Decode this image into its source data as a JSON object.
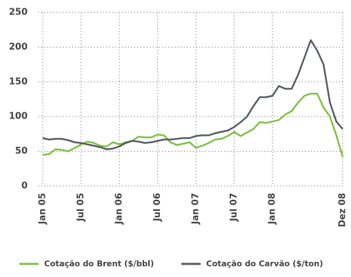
{
  "chart_data": {
    "type": "line",
    "categories": [
      "Jan 05",
      null,
      null,
      null,
      null,
      null,
      "Jul 05",
      null,
      null,
      null,
      null,
      null,
      "Jan 06",
      null,
      null,
      null,
      null,
      null,
      "Jul 06",
      null,
      null,
      null,
      null,
      null,
      "Jan 07",
      null,
      null,
      null,
      null,
      null,
      "Jul 07",
      null,
      null,
      null,
      null,
      null,
      "Jan 08",
      null,
      null,
      null,
      null,
      null,
      null,
      null,
      null,
      null,
      null,
      "Dez 08"
    ],
    "series": [
      {
        "name": "Cotação do Brent ($/bbl)",
        "color": "#7dc142",
        "values": [
          45,
          46,
          53,
          52,
          50,
          55,
          60,
          64,
          62,
          58,
          57,
          63,
          60,
          63,
          65,
          71,
          70,
          70,
          74,
          73,
          63,
          59,
          61,
          63,
          55,
          58,
          62,
          67,
          68,
          72,
          78,
          72,
          77,
          82,
          92,
          91,
          93,
          95,
          103,
          108,
          120,
          130,
          133,
          133,
          113,
          100,
          73,
          42
        ]
      },
      {
        "name": "Cotação do Carvão ($/ton)",
        "color": "#565b61",
        "values": [
          69,
          67,
          68,
          68,
          66,
          63,
          62,
          60,
          58,
          56,
          53,
          54,
          57,
          62,
          65,
          64,
          62,
          63,
          65,
          67,
          67,
          68,
          69,
          69,
          72,
          73,
          73,
          76,
          78,
          80,
          85,
          92,
          100,
          115,
          128,
          128,
          130,
          144,
          140,
          140,
          160,
          185,
          210,
          195,
          175,
          120,
          93,
          82
        ]
      }
    ],
    "ylim": [
      0,
      250
    ],
    "yticks": [
      0,
      50,
      100,
      150,
      200,
      250
    ],
    "grid": true
  }
}
